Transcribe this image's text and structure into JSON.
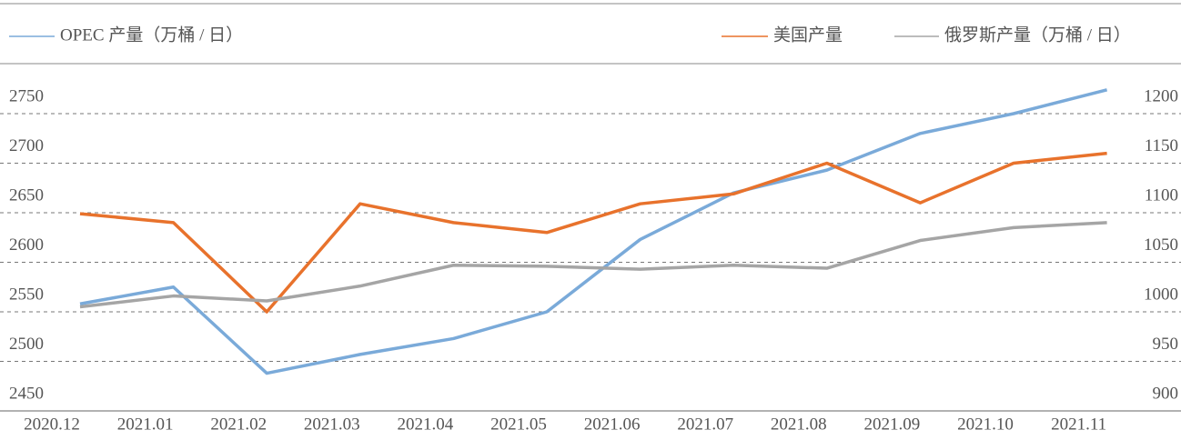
{
  "chart_data": {
    "type": "line",
    "categories": [
      "2020.12",
      "2021.01",
      "2021.02",
      "2021.03",
      "2021.04",
      "2021.05",
      "2021.06",
      "2021.07",
      "2021.08",
      "2021.09",
      "2021.10",
      "2021.11"
    ],
    "series": [
      {
        "name": "OPEC 产量（万桶 / 日）",
        "color": "#7aaad9",
        "values": [
          2558,
          2575,
          2488,
          2507,
          2523,
          2550,
          2623,
          2670,
          2693,
          2730,
          2750,
          2774
        ]
      },
      {
        "name": "美国产量",
        "color": "#e8722c",
        "axis": "y2",
        "values": [
          1099,
          1090,
          1000,
          1109,
          1090,
          1080,
          1109,
          1119,
          1150,
          1110,
          1150,
          1160
        ]
      },
      {
        "name": "俄罗斯产量（万桶 / 日）",
        "color": "#a5a5a5",
        "axis": "y2",
        "values": [
          1005,
          1016,
          1011,
          1026,
          1047,
          1046,
          1043,
          1047,
          1044,
          1072,
          1085,
          1090
        ]
      }
    ],
    "ylim": [
      2450,
      2750
    ],
    "yticks": [
      2450,
      2500,
      2550,
      2600,
      2650,
      2700,
      2750
    ],
    "y2lim": [
      900,
      1200
    ],
    "y2ticks": [
      900,
      950,
      1000,
      1050,
      1100,
      1150,
      1200
    ],
    "grid": true
  }
}
